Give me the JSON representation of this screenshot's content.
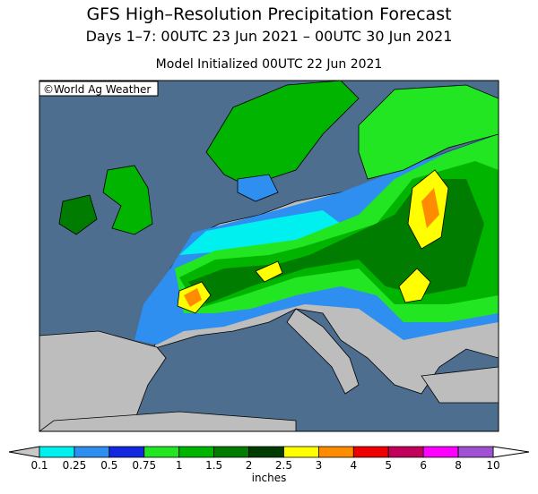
{
  "header": {
    "title": "GFS High–Resolution Precipitation Forecast",
    "subtitle": "Days 1–7: 00UTC 23 Jun 2021 – 00UTC 30 Jun 2021",
    "init": "Model Initialized 00UTC 22 Jun 2021"
  },
  "credit": "©World Ag Weather",
  "legend": {
    "ticks": [
      "0.1",
      "0.25",
      "0.5",
      "0.75",
      "1",
      "1.5",
      "2",
      "2.5",
      "3",
      "4",
      "5",
      "6",
      "8",
      "10"
    ],
    "colors": [
      "#00f0f0",
      "#2e8ff0",
      "#1428e0",
      "#22e622",
      "#00b400",
      "#007d00",
      "#003c00",
      "#ffff00",
      "#ff8c00",
      "#ee0000",
      "#c0005a",
      "#ff00ff",
      "#a050d2"
    ],
    "below_color": "#c8c8c8",
    "above_color": "#ffffff",
    "unit": "inches"
  }
}
